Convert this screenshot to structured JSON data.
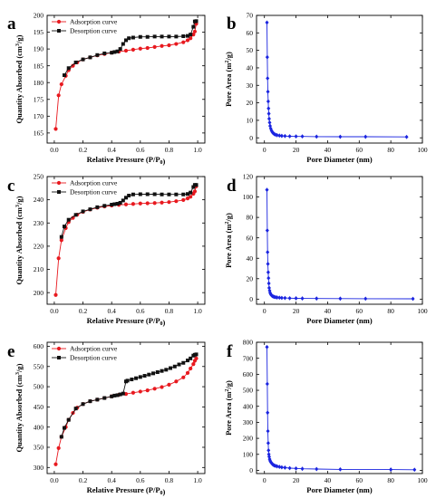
{
  "colors": {
    "adsorption": "#e8191f",
    "desorption": "#111111",
    "pore": "#1a24e0"
  },
  "chart_data": [
    {
      "panel": "a",
      "type": "line",
      "xlabel": "Relative Pressure (P/P0)",
      "ylabel": "Quantity Absorbed (cm3/g)",
      "xlim": [
        -0.05,
        1.05
      ],
      "ylim": [
        162,
        200
      ],
      "xticks": [
        "0.0",
        "0.2",
        "0.4",
        "0.6",
        "0.8",
        "1.0"
      ],
      "xtick_values": [
        0,
        0.2,
        0.4,
        0.6,
        0.8,
        1.0
      ],
      "yticks": [
        "165",
        "170",
        "175",
        "180",
        "185",
        "190",
        "195",
        "200"
      ],
      "ytick_values": [
        165,
        170,
        175,
        180,
        185,
        190,
        195,
        200
      ],
      "legend": "top-left",
      "series": [
        {
          "name": "Adsorption curve",
          "marker": "circle",
          "x": [
            0.01,
            0.03,
            0.05,
            0.08,
            0.1,
            0.13,
            0.16,
            0.2,
            0.25,
            0.3,
            0.35,
            0.4,
            0.45,
            0.5,
            0.55,
            0.6,
            0.65,
            0.7,
            0.75,
            0.8,
            0.85,
            0.9,
            0.93,
            0.95,
            0.97,
            0.98,
            0.99
          ],
          "y": [
            166.2,
            176.2,
            179.5,
            182.0,
            183.7,
            185.0,
            186.0,
            186.9,
            187.5,
            188.1,
            188.5,
            188.9,
            189.2,
            189.5,
            189.8,
            190.1,
            190.3,
            190.6,
            190.9,
            191.1,
            191.5,
            192.0,
            192.6,
            193.2,
            194.3,
            195.2,
            197.5
          ]
        },
        {
          "name": "Desorption curve",
          "marker": "square",
          "x": [
            0.99,
            0.98,
            0.97,
            0.95,
            0.93,
            0.9,
            0.85,
            0.8,
            0.75,
            0.7,
            0.65,
            0.6,
            0.55,
            0.52,
            0.5,
            0.48,
            0.46,
            0.44,
            0.42,
            0.4,
            0.35,
            0.3,
            0.25,
            0.2,
            0.15,
            0.1,
            0.07
          ],
          "y": [
            198.3,
            198.2,
            196.6,
            194.3,
            193.9,
            193.8,
            193.7,
            193.7,
            193.7,
            193.7,
            193.6,
            193.6,
            193.4,
            193.2,
            192.6,
            191.5,
            190.0,
            189.3,
            189.1,
            188.9,
            188.7,
            188.2,
            187.5,
            186.9,
            186.0,
            184.3,
            182.2
          ]
        }
      ]
    },
    {
      "panel": "b",
      "type": "line",
      "xlabel": "Pore Diameter (nm)",
      "ylabel": "Pore Area (m2/g)",
      "xlim": [
        -5,
        100
      ],
      "ylim": [
        -3,
        70
      ],
      "xticks": [
        "0",
        "20",
        "40",
        "60",
        "80",
        "100"
      ],
      "xtick_values": [
        0,
        20,
        40,
        60,
        80,
        100
      ],
      "yticks": [
        "0",
        "10",
        "20",
        "30",
        "40",
        "50",
        "60",
        "70"
      ],
      "ytick_values": [
        0,
        10,
        20,
        30,
        40,
        50,
        60,
        70
      ],
      "series": [
        {
          "marker": "diamond",
          "x": [
            1.6,
            1.8,
            2.0,
            2.2,
            2.4,
            2.6,
            2.8,
            3.0,
            3.3,
            3.6,
            4.0,
            4.5,
            5.0,
            5.5,
            6.2,
            7.0,
            8.0,
            9.5,
            11,
            13,
            16,
            20,
            24,
            33,
            48,
            64,
            90
          ],
          "y": [
            65.9,
            46.1,
            34.0,
            26.4,
            20.8,
            16.8,
            13.8,
            10.9,
            8.7,
            6.8,
            5.3,
            4.1,
            3.3,
            2.7,
            2.2,
            1.8,
            1.5,
            1.3,
            1.1,
            1.0,
            0.9,
            0.8,
            0.8,
            0.7,
            0.6,
            0.6,
            0.5
          ]
        }
      ]
    },
    {
      "panel": "c",
      "type": "line",
      "xlabel": "Relative Pressure (P/P0)",
      "ylabel": "Quantity Absorbed (cm3/g)",
      "xlim": [
        -0.05,
        1.05
      ],
      "ylim": [
        195,
        250
      ],
      "xticks": [
        "0.0",
        "0.2",
        "0.4",
        "0.6",
        "0.8",
        "1.0"
      ],
      "xtick_values": [
        0,
        0.2,
        0.4,
        0.6,
        0.8,
        1.0
      ],
      "yticks": [
        "200",
        "210",
        "220",
        "230",
        "240",
        "250"
      ],
      "ytick_values": [
        200,
        210,
        220,
        230,
        240,
        250
      ],
      "legend": "top-left",
      "series": [
        {
          "name": "Adsorption curve",
          "marker": "circle",
          "x": [
            0.01,
            0.03,
            0.05,
            0.08,
            0.1,
            0.13,
            0.16,
            0.2,
            0.25,
            0.3,
            0.35,
            0.4,
            0.45,
            0.5,
            0.55,
            0.6,
            0.65,
            0.7,
            0.75,
            0.8,
            0.85,
            0.9,
            0.93,
            0.95,
            0.97,
            0.98,
            0.99
          ],
          "y": [
            199.0,
            214.8,
            222.6,
            227.8,
            230.4,
            232.2,
            233.6,
            234.8,
            235.8,
            236.6,
            237.1,
            237.5,
            237.8,
            238.0,
            238.2,
            238.4,
            238.5,
            238.6,
            238.8,
            239.0,
            239.4,
            239.9,
            240.6,
            241.3,
            242.6,
            243.6,
            245.8
          ]
        },
        {
          "name": "Desorption curve",
          "marker": "square",
          "x": [
            0.99,
            0.98,
            0.97,
            0.95,
            0.93,
            0.9,
            0.85,
            0.8,
            0.75,
            0.7,
            0.65,
            0.6,
            0.55,
            0.52,
            0.5,
            0.48,
            0.46,
            0.44,
            0.42,
            0.4,
            0.35,
            0.3,
            0.25,
            0.2,
            0.15,
            0.1,
            0.07,
            0.05
          ],
          "y": [
            246.4,
            246.4,
            245.5,
            243.1,
            242.5,
            242.3,
            242.3,
            242.3,
            242.3,
            242.4,
            242.4,
            242.4,
            242.3,
            241.8,
            240.9,
            239.7,
            238.7,
            238.3,
            238.1,
            237.9,
            237.4,
            236.8,
            235.9,
            235.0,
            233.5,
            231.4,
            228.5,
            224.0
          ]
        }
      ]
    },
    {
      "panel": "d",
      "type": "line",
      "xlabel": "Pore Diameter (nm)",
      "ylabel": "Pore Area (m2/g)",
      "xlim": [
        -5,
        100
      ],
      "ylim": [
        -5,
        120
      ],
      "xticks": [
        "0",
        "20",
        "40",
        "60",
        "80",
        "100"
      ],
      "xtick_values": [
        0,
        20,
        40,
        60,
        80,
        100
      ],
      "yticks": [
        "0",
        "20",
        "40",
        "60",
        "80",
        "100",
        "120"
      ],
      "ytick_values": [
        0,
        20,
        40,
        60,
        80,
        100,
        120
      ],
      "series": [
        {
          "marker": "diamond",
          "x": [
            1.6,
            1.8,
            2.0,
            2.2,
            2.4,
            2.6,
            2.8,
            3.0,
            3.3,
            3.6,
            4.0,
            4.5,
            5.0,
            5.5,
            6.2,
            7.0,
            8.0,
            9.5,
            11,
            13,
            16,
            20,
            24,
            33,
            48,
            64,
            94
          ],
          "y": [
            107.0,
            67.2,
            46.0,
            34.5,
            26.3,
            20.6,
            15.4,
            11.0,
            8.3,
            6.2,
            4.8,
            3.8,
            3.1,
            2.6,
            2.2,
            1.9,
            1.6,
            1.4,
            1.2,
            1.1,
            0.9,
            0.8,
            0.7,
            0.6,
            0.5,
            0.4,
            0.3
          ]
        }
      ]
    },
    {
      "panel": "e",
      "type": "line",
      "xlabel": "Relative Pressure (P/P0)",
      "ylabel": "Quantity Absorbed (cm3/g)",
      "xlim": [
        -0.05,
        1.05
      ],
      "ylim": [
        285,
        610
      ],
      "xticks": [
        "0.0",
        "0.2",
        "0.4",
        "0.6",
        "0.8",
        "1.0"
      ],
      "xtick_values": [
        0,
        0.2,
        0.4,
        0.6,
        0.8,
        1.0
      ],
      "yticks": [
        "300",
        "350",
        "400",
        "450",
        "500",
        "550",
        "600"
      ],
      "ytick_values": [
        300,
        350,
        400,
        450,
        500,
        550,
        600
      ],
      "legend": "top-left",
      "series": [
        {
          "name": "Adsorption curve",
          "marker": "circle",
          "x": [
            0.01,
            0.03,
            0.05,
            0.08,
            0.1,
            0.13,
            0.16,
            0.2,
            0.25,
            0.3,
            0.35,
            0.4,
            0.45,
            0.5,
            0.55,
            0.6,
            0.65,
            0.7,
            0.75,
            0.8,
            0.85,
            0.9,
            0.93,
            0.95,
            0.97,
            0.98,
            0.99
          ],
          "y": [
            308,
            348,
            376,
            400,
            418,
            435,
            448,
            457,
            464,
            468,
            472,
            476,
            480,
            482,
            485,
            488,
            491,
            495,
            499,
            505,
            513,
            523,
            534,
            545,
            556,
            564,
            570
          ]
        },
        {
          "name": "Desorption curve",
          "marker": "square",
          "x": [
            0.99,
            0.98,
            0.97,
            0.95,
            0.93,
            0.9,
            0.87,
            0.84,
            0.81,
            0.78,
            0.75,
            0.72,
            0.69,
            0.66,
            0.63,
            0.6,
            0.57,
            0.54,
            0.51,
            0.5,
            0.48,
            0.46,
            0.44,
            0.42,
            0.4,
            0.35,
            0.3,
            0.25,
            0.2,
            0.15,
            0.1,
            0.07,
            0.05
          ],
          "y": [
            580,
            579,
            577,
            570,
            565,
            559,
            555,
            550,
            546,
            542,
            539,
            536,
            533,
            530,
            527,
            524,
            521,
            518,
            515,
            513,
            483,
            481,
            479,
            478,
            476,
            472,
            468,
            464,
            457,
            446,
            418,
            398,
            376
          ]
        }
      ]
    },
    {
      "panel": "f",
      "type": "line",
      "xlabel": "Pore Diameter (nm)",
      "ylabel": "Pore Area (m2/g)",
      "xlim": [
        -5,
        100
      ],
      "ylim": [
        -20,
        800
      ],
      "xticks": [
        "0",
        "20",
        "40",
        "60",
        "80",
        "100"
      ],
      "xtick_values": [
        0,
        20,
        40,
        60,
        80,
        100
      ],
      "yticks": [
        "0",
        "100",
        "200",
        "300",
        "400",
        "500",
        "600",
        "700",
        "800"
      ],
      "ytick_values": [
        0,
        100,
        200,
        300,
        400,
        500,
        600,
        700,
        800
      ],
      "series": [
        {
          "marker": "diamond",
          "x": [
            1.6,
            1.8,
            2.0,
            2.2,
            2.4,
            2.6,
            2.8,
            3.0,
            3.3,
            3.6,
            4.0,
            4.5,
            5.0,
            5.5,
            6.2,
            7.0,
            8.0,
            9.5,
            11,
            13,
            16,
            20,
            24,
            33,
            48,
            80,
            95
          ],
          "y": [
            770,
            540,
            360,
            245,
            170,
            125,
            100,
            85,
            70,
            60,
            52,
            46,
            40,
            35,
            31,
            28,
            25,
            22,
            19,
            17,
            14,
            12,
            10,
            8,
            6,
            5,
            4
          ]
        }
      ]
    }
  ],
  "panel_labels": [
    "a",
    "b",
    "c",
    "d",
    "e",
    "f"
  ]
}
